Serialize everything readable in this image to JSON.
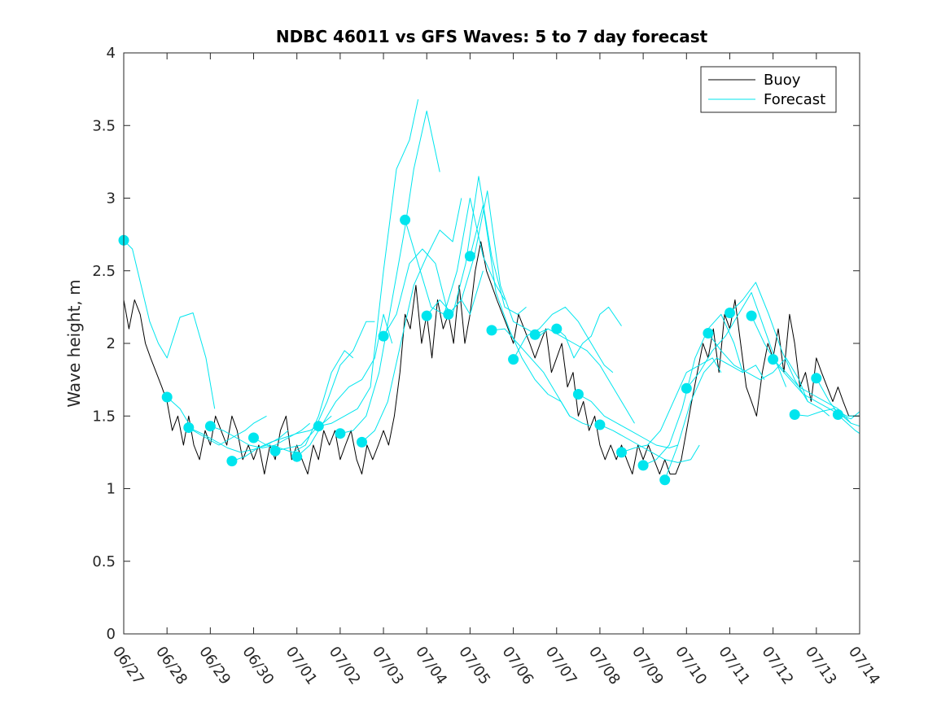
{
  "chart_data": {
    "type": "line",
    "title": "NDBC 46011 vs GFS Waves: 5 to 7 day forecast",
    "ylabel": "Wave height, m",
    "xlabel": "",
    "ylim": [
      0,
      4
    ],
    "yticks": [
      0,
      0.5,
      1,
      1.5,
      2,
      2.5,
      3,
      3.5,
      4
    ],
    "ytick_labels": [
      "0",
      "0.5",
      "1",
      "1.5",
      "2",
      "2.5",
      "3",
      "3.5",
      "4"
    ],
    "xlim": [
      0,
      17
    ],
    "xticks": [
      0,
      1,
      2,
      3,
      4,
      5,
      6,
      7,
      8,
      9,
      10,
      11,
      12,
      13,
      14,
      15,
      16,
      17
    ],
    "xtick_labels": [
      "06/27",
      "06/28",
      "06/29",
      "06/30",
      "07/01",
      "07/02",
      "07/03",
      "07/04",
      "07/05",
      "07/06",
      "07/07",
      "07/08",
      "07/09",
      "07/10",
      "07/11",
      "07/12",
      "07/13",
      "07/14"
    ],
    "legend": {
      "placement": "top-right",
      "entries": [
        {
          "label": "Buoy",
          "color": "#000000"
        },
        {
          "label": "Forecast",
          "color": "#00e5ee"
        }
      ]
    },
    "series": [
      {
        "name": "Buoy",
        "color": "#000000",
        "x": [
          0,
          0.12,
          0.25,
          0.38,
          0.5,
          0.62,
          0.75,
          0.88,
          1.0,
          1.12,
          1.25,
          1.38,
          1.5,
          1.62,
          1.75,
          1.88,
          2.0,
          2.12,
          2.25,
          2.38,
          2.5,
          2.62,
          2.75,
          2.88,
          3.0,
          3.12,
          3.25,
          3.38,
          3.5,
          3.62,
          3.75,
          3.88,
          4.0,
          4.12,
          4.25,
          4.38,
          4.5,
          4.62,
          4.75,
          4.88,
          5.0,
          5.12,
          5.25,
          5.38,
          5.5,
          5.62,
          5.75,
          5.88,
          6.0,
          6.12,
          6.25,
          6.38,
          6.5,
          6.62,
          6.75,
          6.88,
          7.0,
          7.12,
          7.25,
          7.38,
          7.5,
          7.62,
          7.75,
          7.88,
          8.0,
          8.12,
          8.25,
          8.38,
          8.5,
          8.62,
          8.75,
          8.88,
          9.0,
          9.12,
          9.25,
          9.38,
          9.5,
          9.62,
          9.75,
          9.88,
          10.0,
          10.12,
          10.25,
          10.38,
          10.5,
          10.62,
          10.75,
          10.88,
          11.0,
          11.12,
          11.25,
          11.38,
          11.5,
          11.62,
          11.75,
          11.88,
          12.0,
          12.12,
          12.25,
          12.38,
          12.5,
          12.62,
          12.75,
          12.88,
          13.0,
          13.12,
          13.25,
          13.38,
          13.5,
          13.62,
          13.75,
          13.88,
          14.0,
          14.12,
          14.25,
          14.38,
          14.5,
          14.62,
          14.75,
          14.88,
          15.0,
          15.12,
          15.25,
          15.38,
          15.5,
          15.62,
          15.75,
          15.88,
          16.0,
          16.12,
          16.25,
          16.38,
          16.5,
          16.62,
          16.75,
          16.88,
          17.0
        ],
        "y": [
          2.3,
          2.1,
          2.3,
          2.2,
          2.0,
          1.9,
          1.8,
          1.7,
          1.6,
          1.4,
          1.5,
          1.3,
          1.5,
          1.3,
          1.2,
          1.4,
          1.3,
          1.5,
          1.4,
          1.3,
          1.5,
          1.4,
          1.2,
          1.3,
          1.2,
          1.3,
          1.1,
          1.3,
          1.2,
          1.4,
          1.5,
          1.2,
          1.3,
          1.2,
          1.1,
          1.3,
          1.2,
          1.4,
          1.3,
          1.4,
          1.2,
          1.3,
          1.4,
          1.2,
          1.1,
          1.3,
          1.2,
          1.3,
          1.4,
          1.3,
          1.5,
          1.8,
          2.2,
          2.1,
          2.4,
          2.0,
          2.2,
          1.9,
          2.3,
          2.1,
          2.2,
          2.0,
          2.4,
          2.0,
          2.2,
          2.5,
          2.7,
          2.5,
          2.4,
          2.3,
          2.2,
          2.1,
          2.0,
          2.2,
          2.1,
          2.0,
          1.9,
          2.0,
          2.1,
          1.8,
          1.9,
          2.0,
          1.7,
          1.8,
          1.5,
          1.6,
          1.4,
          1.5,
          1.3,
          1.2,
          1.3,
          1.2,
          1.3,
          1.2,
          1.1,
          1.3,
          1.2,
          1.3,
          1.2,
          1.1,
          1.2,
          1.1,
          1.1,
          1.2,
          1.4,
          1.6,
          1.8,
          2.0,
          1.9,
          2.1,
          1.8,
          2.2,
          2.1,
          2.3,
          2.0,
          1.7,
          1.6,
          1.5,
          1.8,
          2.0,
          1.9,
          2.1,
          1.8,
          2.2,
          2.0,
          1.7,
          1.8,
          1.6,
          1.9,
          1.8,
          1.7,
          1.6,
          1.7,
          1.6,
          1.5,
          1.5,
          1.5
        ]
      },
      {
        "name": "Forecast",
        "color": "#00e5ee",
        "x": [
          0,
          0.2,
          0.4,
          0.6,
          0.8,
          1.0,
          1.3,
          1.6,
          1.9,
          2.1
        ],
        "y": [
          2.71,
          2.65,
          2.4,
          2.15,
          2.0,
          1.9,
          2.18,
          2.21,
          1.9,
          1.55
        ]
      },
      {
        "name": "",
        "color": "#00e5ee",
        "x": [
          1.0,
          1.3,
          1.6,
          1.9,
          2.2,
          2.5,
          2.8,
          3.0,
          3.3
        ],
        "y": [
          1.63,
          1.55,
          1.4,
          1.35,
          1.3,
          1.35,
          1.4,
          1.45,
          1.5
        ]
      },
      {
        "name": "",
        "color": "#00e5ee",
        "x": [
          1.5,
          1.8,
          2.1,
          2.4,
          2.7,
          3.0,
          3.3,
          3.6,
          3.8
        ],
        "y": [
          1.42,
          1.38,
          1.33,
          1.28,
          1.25,
          1.27,
          1.3,
          1.35,
          1.4
        ]
      },
      {
        "name": "",
        "color": "#00e5ee",
        "x": [
          2.0,
          2.3,
          2.6,
          2.9,
          3.2,
          3.5,
          3.8,
          4.1,
          4.3
        ],
        "y": [
          1.43,
          1.4,
          1.35,
          1.3,
          1.28,
          1.3,
          1.35,
          1.4,
          1.45
        ]
      },
      {
        "name": "",
        "color": "#00e5ee",
        "x": [
          2.5,
          2.8,
          3.1,
          3.4,
          3.7,
          4.0,
          4.3,
          4.6,
          4.8
        ],
        "y": [
          1.19,
          1.22,
          1.28,
          1.32,
          1.35,
          1.38,
          1.4,
          1.45,
          1.5
        ]
      },
      {
        "name": "",
        "color": "#00e5ee",
        "x": [
          3.0,
          3.3,
          3.6,
          3.9,
          4.2,
          4.5,
          4.8,
          5.1,
          5.3
        ],
        "y": [
          1.35,
          1.3,
          1.28,
          1.25,
          1.3,
          1.5,
          1.8,
          1.95,
          1.9
        ]
      },
      {
        "name": "",
        "color": "#00e5ee",
        "x": [
          3.5,
          3.8,
          4.1,
          4.4,
          4.7,
          5.0,
          5.3,
          5.6,
          5.8
        ],
        "y": [
          1.26,
          1.28,
          1.3,
          1.4,
          1.6,
          1.85,
          1.95,
          2.15,
          2.15
        ]
      },
      {
        "name": "",
        "color": "#00e5ee",
        "x": [
          4.0,
          4.3,
          4.6,
          4.9,
          5.2,
          5.5,
          5.8,
          6.0,
          6.2
        ],
        "y": [
          1.22,
          1.3,
          1.45,
          1.6,
          1.7,
          1.75,
          1.9,
          2.2,
          2.0
        ]
      },
      {
        "name": "",
        "color": "#00e5ee",
        "x": [
          4.5,
          4.8,
          5.1,
          5.4,
          5.7,
          6.0,
          6.3,
          6.6,
          6.8
        ],
        "y": [
          1.43,
          1.45,
          1.5,
          1.55,
          1.7,
          2.5,
          3.2,
          3.4,
          3.68
        ]
      },
      {
        "name": "",
        "color": "#00e5ee",
        "x": [
          5.0,
          5.3,
          5.6,
          5.9,
          6.2,
          6.5,
          6.7,
          7.0,
          7.3
        ],
        "y": [
          1.38,
          1.4,
          1.5,
          1.8,
          2.3,
          2.8,
          3.2,
          3.6,
          3.18
        ]
      },
      {
        "name": "",
        "color": "#00e5ee",
        "x": [
          5.5,
          5.8,
          6.1,
          6.4,
          6.7,
          7.0,
          7.3,
          7.6,
          7.8
        ],
        "y": [
          1.32,
          1.4,
          1.6,
          2.0,
          2.4,
          2.6,
          2.78,
          2.7,
          3.0
        ]
      },
      {
        "name": "",
        "color": "#00e5ee",
        "x": [
          6.0,
          6.3,
          6.6,
          6.9,
          7.2,
          7.5,
          7.8,
          8.0,
          8.3
        ],
        "y": [
          2.05,
          2.2,
          2.55,
          2.65,
          2.55,
          2.2,
          2.3,
          2.2,
          2.5
        ]
      },
      {
        "name": "",
        "color": "#00e5ee",
        "x": [
          6.5,
          6.8,
          7.1,
          7.4,
          7.7,
          8.0,
          8.3,
          8.6,
          8.8
        ],
        "y": [
          2.85,
          2.55,
          2.25,
          2.2,
          2.5,
          3.0,
          2.6,
          2.4,
          2.3
        ]
      },
      {
        "name": "",
        "color": "#00e5ee",
        "x": [
          7.0,
          7.3,
          7.6,
          7.9,
          8.2,
          8.5,
          8.8,
          9.1,
          9.3
        ],
        "y": [
          2.19,
          2.3,
          2.2,
          2.55,
          3.15,
          2.6,
          2.25,
          2.2,
          2.25
        ]
      },
      {
        "name": "",
        "color": "#00e5ee",
        "x": [
          7.5,
          7.8,
          8.1,
          8.4,
          8.7,
          9.0,
          9.3,
          9.6,
          9.8
        ],
        "y": [
          2.2,
          2.3,
          2.6,
          3.05,
          2.4,
          2.15,
          2.1,
          2.05,
          2.1
        ]
      },
      {
        "name": "",
        "color": "#00e5ee",
        "x": [
          8.0,
          8.3,
          8.6,
          8.9,
          9.2,
          9.5,
          9.8,
          10.1,
          10.3
        ],
        "y": [
          2.6,
          2.95,
          2.35,
          2.1,
          1.9,
          1.75,
          1.65,
          1.6,
          1.5
        ]
      },
      {
        "name": "",
        "color": "#00e5ee",
        "x": [
          8.5,
          8.8,
          9.1,
          9.4,
          9.7,
          10.0,
          10.3,
          10.6,
          10.8
        ],
        "y": [
          2.09,
          2.1,
          2.0,
          1.9,
          1.8,
          1.65,
          1.5,
          1.45,
          1.43
        ]
      },
      {
        "name": "",
        "color": "#00e5ee",
        "x": [
          9.0,
          9.3,
          9.6,
          9.9,
          10.2,
          10.5,
          10.8,
          11.1,
          11.3
        ],
        "y": [
          1.89,
          2.05,
          2.1,
          2.2,
          2.25,
          2.15,
          2.0,
          1.85,
          1.8
        ]
      },
      {
        "name": "",
        "color": "#00e5ee",
        "x": [
          9.5,
          9.8,
          10.1,
          10.4,
          10.7,
          11.0,
          11.3,
          11.6,
          11.8
        ],
        "y": [
          2.06,
          2.1,
          2.05,
          2.0,
          1.95,
          1.85,
          1.7,
          1.55,
          1.45
        ]
      },
      {
        "name": "",
        "color": "#00e5ee",
        "x": [
          10.0,
          10.2,
          10.4,
          10.6,
          10.8,
          11.0,
          11.2,
          11.5
        ],
        "y": [
          2.1,
          2.05,
          1.9,
          2.0,
          2.05,
          2.2,
          2.25,
          2.12
        ]
      },
      {
        "name": "",
        "color": "#00e5ee",
        "x": [
          10.5,
          10.8,
          11.1,
          11.4,
          11.7,
          12.0,
          12.3,
          12.6,
          12.8
        ],
        "y": [
          1.65,
          1.6,
          1.5,
          1.45,
          1.4,
          1.35,
          1.3,
          1.28,
          1.3
        ]
      },
      {
        "name": "",
        "color": "#00e5ee",
        "x": [
          11.0,
          11.3,
          11.6,
          11.9,
          12.2,
          12.5,
          12.8,
          13.1,
          13.3
        ],
        "y": [
          1.44,
          1.4,
          1.35,
          1.3,
          1.25,
          1.2,
          1.18,
          1.2,
          1.3
        ]
      },
      {
        "name": "",
        "color": "#00e5ee",
        "x": [
          11.5,
          11.8,
          12.1,
          12.4,
          12.7,
          13.0,
          13.3,
          13.6,
          13.8
        ],
        "y": [
          1.25,
          1.28,
          1.3,
          1.4,
          1.6,
          1.8,
          1.85,
          1.9,
          1.8
        ]
      },
      {
        "name": "",
        "color": "#00e5ee",
        "x": [
          12.0,
          12.3,
          12.6,
          12.9,
          13.2,
          13.5,
          13.8,
          14.1,
          14.3
        ],
        "y": [
          1.16,
          1.2,
          1.3,
          1.55,
          1.9,
          2.1,
          2.2,
          2.0,
          1.8
        ]
      },
      {
        "name": "",
        "color": "#00e5ee",
        "x": [
          12.5,
          12.8,
          13.1,
          13.4,
          13.7,
          14.0,
          14.3,
          14.6,
          14.8
        ],
        "y": [
          1.06,
          1.3,
          1.6,
          1.8,
          1.9,
          1.85,
          1.8,
          1.85,
          1.75
        ]
      },
      {
        "name": "",
        "color": "#00e5ee",
        "x": [
          13.0,
          13.3,
          13.6,
          13.9,
          14.2,
          14.5,
          14.8,
          15.1,
          15.3
        ],
        "y": [
          1.69,
          1.8,
          1.95,
          2.05,
          2.2,
          2.35,
          2.1,
          1.85,
          1.7
        ]
      },
      {
        "name": "",
        "color": "#00e5ee",
        "x": [
          13.5,
          13.8,
          14.1,
          14.4,
          14.7,
          15.0,
          15.3,
          15.6,
          15.8
        ],
        "y": [
          2.07,
          1.95,
          1.85,
          1.8,
          1.75,
          1.8,
          1.9,
          1.75,
          1.6
        ]
      },
      {
        "name": "",
        "color": "#00e5ee",
        "x": [
          14.0,
          14.3,
          14.6,
          14.9,
          15.2,
          15.5,
          15.8,
          16.1,
          16.3
        ],
        "y": [
          2.21,
          2.3,
          2.42,
          2.2,
          1.95,
          1.75,
          1.6,
          1.55,
          1.5
        ]
      },
      {
        "name": "",
        "color": "#00e5ee",
        "x": [
          14.5,
          14.8,
          15.1,
          15.4,
          15.7,
          16.0,
          16.3,
          16.6,
          16.8
        ],
        "y": [
          2.19,
          2.0,
          1.85,
          1.75,
          1.65,
          1.6,
          1.55,
          1.5,
          1.45
        ]
      },
      {
        "name": "",
        "color": "#00e5ee",
        "x": [
          15.0,
          15.3,
          15.6,
          15.9,
          16.2,
          16.5,
          16.8,
          17.0
        ],
        "y": [
          1.89,
          1.8,
          1.7,
          1.65,
          1.6,
          1.55,
          1.45,
          1.43
        ]
      },
      {
        "name": "",
        "color": "#00e5ee",
        "x": [
          15.5,
          15.8,
          16.1,
          16.4,
          16.7,
          17.0
        ],
        "y": [
          1.51,
          1.5,
          1.53,
          1.55,
          1.5,
          1.5
        ]
      },
      {
        "name": "",
        "color": "#00e5ee",
        "x": [
          16.0,
          16.3,
          16.6,
          16.9,
          17.0
        ],
        "y": [
          1.76,
          1.6,
          1.48,
          1.4,
          1.38
        ]
      },
      {
        "name": "",
        "color": "#00e5ee",
        "x": [
          16.5,
          16.8,
          17.0
        ],
        "y": [
          1.51,
          1.48,
          1.53
        ]
      }
    ],
    "forecast_markers": {
      "color": "#00e5ee",
      "x": [
        0,
        1.0,
        1.5,
        2.0,
        2.5,
        3.0,
        3.5,
        4.0,
        4.5,
        5.0,
        5.5,
        6.0,
        6.5,
        7.0,
        7.5,
        8.0,
        8.5,
        9.0,
        9.5,
        10.0,
        10.5,
        11.0,
        11.5,
        12.0,
        12.5,
        13.0,
        13.5,
        14.0,
        14.5,
        15.0,
        15.5,
        16.0,
        16.5
      ],
      "y": [
        2.71,
        1.63,
        1.42,
        1.43,
        1.19,
        1.35,
        1.26,
        1.22,
        1.43,
        1.38,
        1.32,
        2.05,
        2.85,
        2.19,
        2.2,
        2.6,
        2.09,
        1.89,
        2.06,
        2.1,
        1.65,
        1.44,
        1.25,
        1.16,
        1.06,
        1.69,
        2.07,
        2.21,
        2.19,
        1.89,
        1.51,
        1.76,
        1.51
      ]
    }
  }
}
